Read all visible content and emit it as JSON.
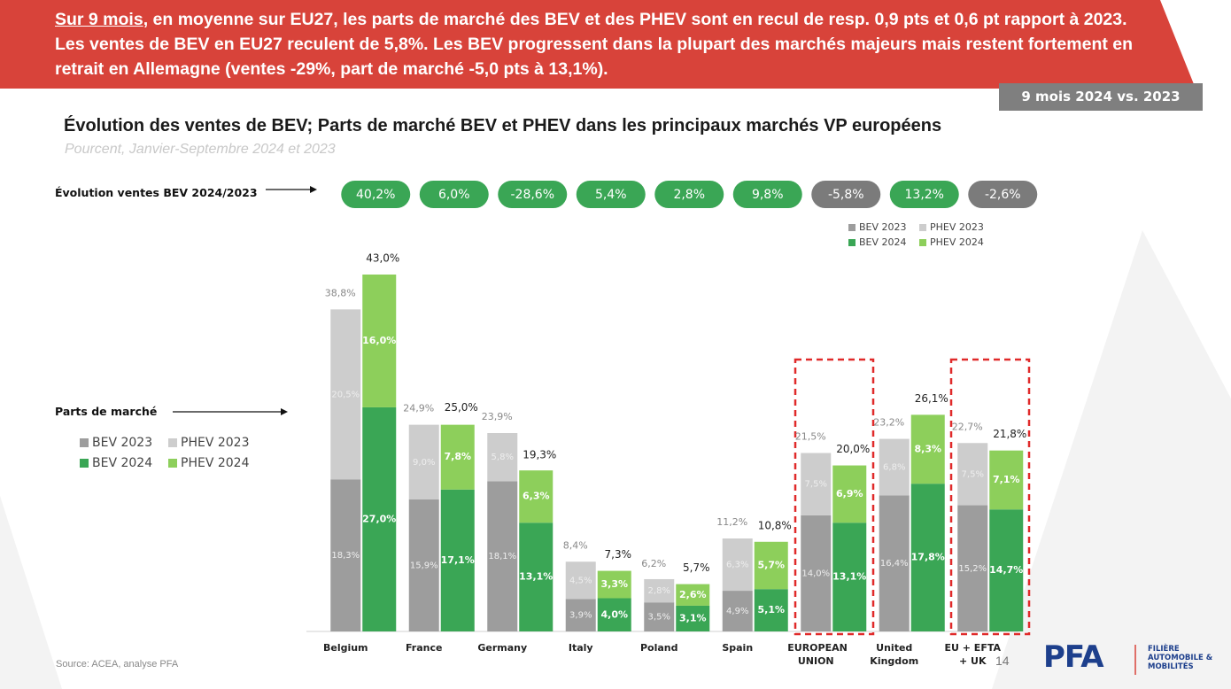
{
  "banner": {
    "highlight": "Sur 9 mois",
    "text": ", en moyenne sur EU27, les parts de marché des BEV et des PHEV sont en recul de resp. 0,9 pts et 0,6 pt rapport à 2023. Les ventes de BEV en EU27 reculent de 5,8%. Les BEV progressent dans la plupart des marchés majeurs mais restent fortement en retrait en Allemagne (ventes -29%, part de marché -5,0 pts à 13,1%)."
  },
  "badge": "9 mois 2024 vs. 2023",
  "source": "Source: ACEA, analyse PFA",
  "page_number": "14",
  "logo": {
    "mark": "PFA",
    "text": "FILIÈRE AUTOMOBILE & MOBILITÉS"
  },
  "chart_data": {
    "type": "bar",
    "title": "Évolution des ventes de BEV; Parts de marché BEV et PHEV dans les principaux marchés VP européens",
    "subtitle": "Pourcent, Janvier-Septembre 2024 et 2023",
    "y_label": "Parts de marché",
    "categories": [
      "Belgium",
      "France",
      "Germany",
      "Italy",
      "Poland",
      "Spain",
      "EUROPEAN UNION",
      "United Kingdom",
      "EU + EFTA + UK"
    ],
    "ylim": [
      0,
      43
    ],
    "evolution": {
      "label": "Évolution ventes BEV 2024/2023",
      "values": [
        40.2,
        6.0,
        -28.6,
        5.4,
        2.8,
        9.8,
        -5.8,
        13.2,
        -2.6
      ],
      "value_labels": [
        "40,2%",
        "6,0%",
        "-28,6%",
        "5,4%",
        "2,8%",
        "9,8%",
        "-5,8%",
        "13,2%",
        "-2,6%"
      ],
      "colors": [
        "#3aa655",
        "#3aa655",
        "#3aa655",
        "#3aa655",
        "#3aa655",
        "#3aa655",
        "#7b7b7b",
        "#3aa655",
        "#7b7b7b"
      ]
    },
    "stacks": [
      {
        "totals": [
          38.8,
          24.9,
          23.9,
          8.4,
          6.2,
          11.2,
          21.5,
          23.2,
          22.7
        ],
        "total_labels": [
          "38,8%",
          "24,9%",
          "23,9%",
          "8,4%",
          "6,2%",
          "11,2%",
          "21,5%",
          "23,2%",
          "22,7%"
        ],
        "series": [
          {
            "name": "BEV 2023",
            "color": "#9d9d9d",
            "values": [
              18.3,
              15.9,
              18.1,
              3.9,
              3.5,
              4.9,
              14.0,
              16.4,
              15.2
            ],
            "value_labels": [
              "18,3%",
              "15,9%",
              "18,1%",
              "3,9%",
              "3,5%",
              "4,9%",
              "14,0%",
              "16,4%",
              "15,2%"
            ]
          },
          {
            "name": "PHEV 2023",
            "color": "#cdcdcd",
            "values": [
              20.5,
              9.0,
              5.8,
              4.5,
              2.8,
              6.3,
              7.5,
              6.8,
              7.5
            ],
            "value_labels": [
              "20,5%",
              "9,0%",
              "5,8%",
              "4,5%",
              "2,8%",
              "6,3%",
              "7,5%",
              "6,8%",
              "7,5%"
            ]
          }
        ]
      },
      {
        "totals": [
          43.0,
          25.0,
          19.3,
          7.3,
          5.7,
          10.8,
          20.0,
          26.1,
          21.8
        ],
        "total_labels": [
          "43,0%",
          "25,0%",
          "19,3%",
          "7,3%",
          "5,7%",
          "10,8%",
          "20,0%",
          "26,1%",
          "21,8%"
        ],
        "series": [
          {
            "name": "BEV 2024",
            "color": "#3aa655",
            "values": [
              27.0,
              17.1,
              13.1,
              4.0,
              3.1,
              5.1,
              13.1,
              17.8,
              14.7
            ],
            "value_labels": [
              "27,0%",
              "17,1%",
              "13,1%",
              "4,0%",
              "3,1%",
              "5,1%",
              "13,1%",
              "17,8%",
              "14,7%"
            ]
          },
          {
            "name": "PHEV 2024",
            "color": "#8dcf5b",
            "values": [
              16.0,
              7.8,
              6.3,
              3.3,
              2.6,
              5.7,
              6.9,
              8.3,
              7.1
            ],
            "value_labels": [
              "16,0%",
              "7,8%",
              "6,3%",
              "3,3%",
              "2,6%",
              "5,7%",
              "6,9%",
              "8,3%",
              "7,1%"
            ]
          }
        ]
      }
    ]
  }
}
